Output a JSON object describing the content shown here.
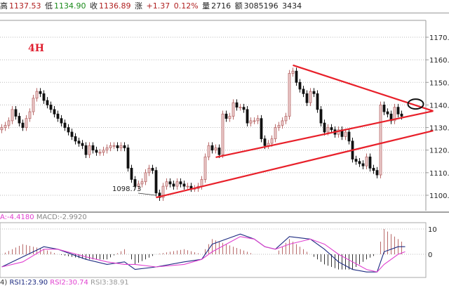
{
  "quote_bar": {
    "high_label": "高",
    "high": "1137.53",
    "low_label": "低",
    "low": "1134.90",
    "close_label": "收",
    "close": "1136.89",
    "change_label": "涨",
    "change": "+1.37",
    "change_pct": "0.12%",
    "volume_label": "量",
    "volume": "2716",
    "amount_label": "额",
    "amount": "3085196",
    "extra": "3434"
  },
  "timeframe_label": "4H",
  "low_annotation": "1098.73",
  "macd_header": {
    "dea": "A:-4.4180",
    "macd": "MACD:-2.9920"
  },
  "rsi_header": {
    "params": "4)",
    "rsi1": "RSI1:23.90",
    "rsi2": "RSI2:30.74",
    "rsi3": "RSI3:38.91"
  },
  "colors": {
    "up": "#b86a6a",
    "up_fill": "#edd0d0",
    "down": "#111111",
    "trendline": "#e8202a",
    "dif": "#1c2a80",
    "dea": "#e040d0"
  },
  "chart_data": [
    {
      "type": "candlestick",
      "title": "",
      "ylim": [
        1095,
        1175
      ],
      "yticks": [
        "1100.0",
        "1110.0",
        "1120.0",
        "1130.0",
        "1140.0",
        "1150.0",
        "1160.0",
        "1170.0"
      ],
      "grid": true,
      "closes": [
        1130,
        1131,
        1133,
        1138,
        1135,
        1132,
        1130,
        1134,
        1137,
        1143,
        1146,
        1145,
        1142,
        1140,
        1138,
        1136,
        1134,
        1132,
        1130,
        1128,
        1126,
        1124,
        1123,
        1122,
        1118,
        1122,
        1120,
        1119,
        1119,
        1120,
        1121,
        1122,
        1122,
        1121,
        1122,
        1121,
        1112,
        1107,
        1104,
        1105,
        1106,
        1110,
        1112,
        1111,
        1101,
        1099,
        1104,
        1106,
        1105,
        1104,
        1106,
        1105,
        1104,
        1104,
        1103,
        1103,
        1104,
        1107,
        1117,
        1122,
        1120,
        1121,
        1118,
        1136,
        1134,
        1135,
        1141,
        1139,
        1139,
        1138,
        1132,
        1133,
        1133,
        1134,
        1125,
        1122,
        1123,
        1125,
        1130,
        1131,
        1133,
        1135,
        1154,
        1155,
        1150,
        1147,
        1145,
        1141,
        1146,
        1145,
        1138,
        1132,
        1128,
        1130,
        1129,
        1127,
        1129,
        1126,
        1128,
        1124,
        1116,
        1115,
        1114,
        1113,
        1117,
        1112,
        1111,
        1109,
        1140,
        1137,
        1136,
        1133,
        1139,
        1136,
        1135
      ],
      "trendlines": [
        {
          "from": [
            44,
            1099
          ],
          "to": [
            123,
            1128.6
          ]
        },
        {
          "from": [
            61,
            1116.8
          ],
          "to": [
            123,
            1137.3
          ]
        },
        {
          "from": [
            83,
            1157.6
          ],
          "to": [
            123,
            1137.3
          ]
        }
      ],
      "highlight_ellipse": {
        "bar": 118,
        "price": 1140.4
      }
    },
    {
      "type": "line",
      "title": "MACD",
      "ylim": [
        -9,
        12
      ],
      "yticks": [
        "10",
        "0"
      ],
      "x_bars": [
        0,
        6,
        12,
        16,
        24,
        30,
        35,
        38,
        44,
        52,
        57,
        60,
        64,
        68,
        72,
        75,
        78,
        82,
        88,
        92,
        96,
        100,
        104,
        107,
        109,
        113,
        115
      ],
      "series": [
        {
          "key": "dif",
          "values": [
            -5,
            -1,
            3,
            2,
            -2,
            -4,
            -3,
            -6,
            -5,
            -3,
            -2,
            4,
            6,
            8,
            6,
            3,
            2,
            7,
            6,
            2,
            -3,
            -6,
            -7,
            -7,
            1,
            3,
            3
          ]
        },
        {
          "key": "dea",
          "values": [
            -5,
            -3,
            2,
            2,
            -1,
            -3,
            -4,
            -4,
            -5,
            -4,
            -2,
            1,
            4,
            7,
            6,
            3,
            2,
            4,
            6,
            4,
            0,
            -3,
            -6,
            -7,
            -4,
            0,
            1
          ]
        }
      ]
    }
  ]
}
